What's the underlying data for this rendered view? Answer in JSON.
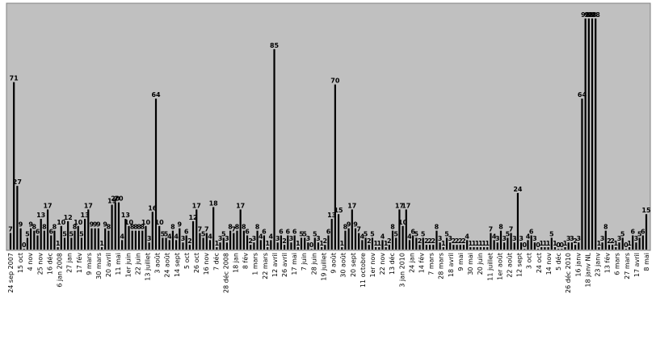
{
  "chart_data": {
    "type": "bar",
    "title": "",
    "xlabel": "",
    "ylabel": "",
    "ylim": [
      0,
      100
    ],
    "grid": false,
    "legend": "none",
    "colors": {
      "plot_background": "#c0c0c0",
      "bar": "#000000",
      "page_background": "#ffffff"
    },
    "values": [
      7,
      71,
      27,
      9,
      0,
      5,
      9,
      8,
      6,
      13,
      8,
      17,
      6,
      8,
      1,
      10,
      5,
      12,
      5,
      8,
      10,
      5,
      13,
      17,
      9,
      9,
      9,
      1,
      9,
      8,
      19,
      20,
      20,
      4,
      13,
      10,
      8,
      8,
      8,
      8,
      10,
      3,
      16,
      64,
      10,
      5,
      5,
      4,
      8,
      4,
      9,
      3,
      6,
      2,
      12,
      17,
      7,
      5,
      7,
      4,
      18,
      1,
      3,
      5,
      3,
      8,
      7,
      8,
      17,
      8,
      6,
      2,
      3,
      8,
      4,
      6,
      1,
      4,
      85,
      3,
      6,
      2,
      6,
      3,
      6,
      1,
      5,
      5,
      3,
      0,
      5,
      3,
      1,
      2,
      6,
      13,
      70,
      15,
      1,
      8,
      9,
      17,
      9,
      7,
      4,
      5,
      2,
      5,
      1,
      1,
      4,
      1,
      2,
      8,
      5,
      17,
      10,
      17,
      4,
      6,
      5,
      2,
      5,
      2,
      2,
      2,
      8,
      3,
      1,
      5,
      3,
      2,
      2,
      2,
      2,
      4,
      1,
      1,
      1,
      1,
      1,
      1,
      7,
      4,
      3,
      8,
      3,
      5,
      7,
      3,
      24,
      3,
      0,
      4,
      6,
      3,
      0,
      1,
      1,
      1,
      5,
      1,
      0,
      0,
      1,
      3,
      3,
      2,
      3,
      64,
      98,
      98,
      98,
      98,
      1,
      3,
      8,
      2,
      2,
      1,
      3,
      5,
      0,
      1,
      6,
      3,
      5,
      6,
      15
    ],
    "x_tick_labels": [
      "24 sep 2007",
      "15 oct",
      "4 nov",
      "25 nov",
      "16 déc",
      "6 jan 2008",
      "27 jan",
      "17 fév",
      "9 mars",
      "30 mars",
      "20 avril",
      "11 mai",
      "1er juin",
      "22 juin",
      "13 juillet",
      "3 août",
      "24 août",
      "14 sept",
      "5 oct",
      "26 oct",
      "16 nov",
      "7 déc",
      "28 déc 2008",
      "18 jan",
      "8 fév",
      "1 mars",
      "22 mars",
      "12 avril",
      "26 avril",
      "17 mai",
      "7 juin",
      "28 juin",
      "19 juillet",
      "9 août",
      "30 août",
      "20 sept",
      "11 octobre",
      "1er nov",
      "22 nov",
      "13 déc",
      "3 jan 2010",
      "24 jan",
      "14 fév",
      "7 mars",
      "28 mars",
      "18 avril",
      "9 mai",
      "30 mai",
      "20 juin",
      "11 juillet",
      "1er août",
      "22 août",
      "12 sept",
      "3 oct",
      "24 oct",
      "14 nov",
      "5 déc",
      "26 déc 2010",
      "16 janv",
      "18 janv NL",
      "23 janv",
      "13 fév",
      "6 mars",
      "27 mars",
      "17 avril",
      "8 mai"
    ],
    "value_labels": [
      "7",
      "71",
      "27",
      "9",
      "0",
      "5",
      "9",
      "8",
      "6",
      "13",
      "8",
      "17",
      "6",
      "8",
      "1",
      "10",
      "5",
      "12",
      "5",
      "8",
      "10",
      "5",
      "13",
      "17",
      "9",
      "9",
      "9",
      "1",
      "9",
      "8",
      "19",
      "20",
      "20",
      "4",
      "13",
      "10",
      "8",
      "8",
      "8",
      "8",
      "10",
      "3",
      "16",
      "64",
      "10",
      "5",
      "5",
      "4",
      "8",
      "4",
      "9",
      "3",
      "6",
      "2",
      "12",
      "17",
      "7",
      "5",
      "7",
      "4",
      "18",
      "1",
      "3",
      "5",
      "3",
      "8",
      "7",
      "8",
      "17",
      "8",
      "6",
      "2",
      "3",
      "8",
      "4",
      "6",
      "1",
      "4",
      "85",
      "3",
      "6",
      "2",
      "6",
      "3",
      "6",
      "1",
      "5",
      "5",
      "3",
      "0",
      "5",
      "3",
      "1",
      "2",
      "6",
      "13",
      "70",
      "15",
      "1",
      "8",
      "9",
      "17",
      "9",
      "7",
      "4",
      "5",
      "2",
      "5",
      "1",
      "1",
      "4",
      "1",
      "2",
      "8",
      "5",
      "17",
      "10",
      "17",
      "4",
      "6",
      "5",
      "2",
      "5",
      "2",
      "2",
      "2",
      "8",
      "3",
      "1",
      "5",
      "3",
      "2",
      "2",
      "2",
      "2",
      "4",
      "1",
      "1",
      "1",
      "1",
      "1",
      "1",
      "7",
      "4",
      "3",
      "8",
      "3",
      "5",
      "7",
      "3",
      "24",
      "3",
      "0",
      "4",
      "6",
      "3",
      "0",
      "1",
      "1",
      "1",
      "5",
      "1",
      "0",
      "0",
      "1",
      "3",
      "3",
      "2",
      "3",
      "64",
      "98",
      "98",
      "98",
      "98",
      "1",
      "3",
      "8",
      "2",
      "2",
      "1",
      "3",
      "5",
      "0",
      "1",
      "6",
      "3",
      "5",
      "6",
      "15"
    ]
  }
}
